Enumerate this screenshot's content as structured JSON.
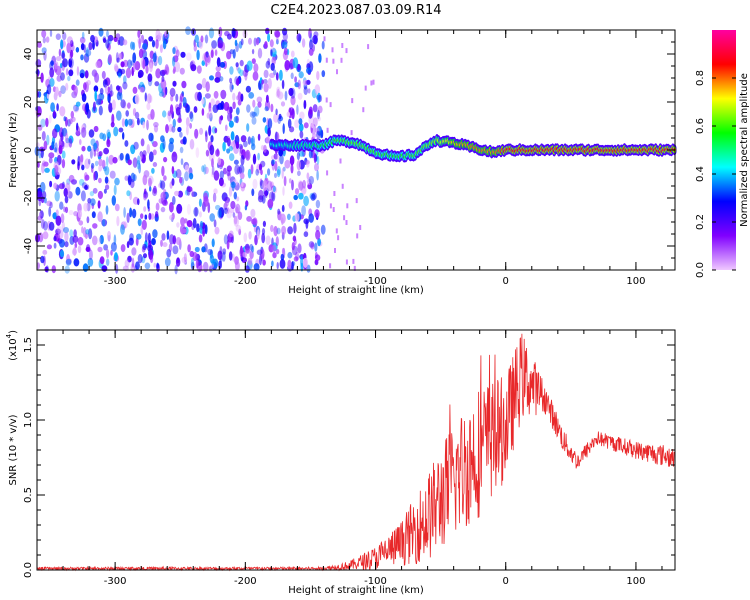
{
  "title": "C2E4.2023.087.03.09.R14",
  "chart_data": [
    {
      "type": "heatmap",
      "xlabel": "Height of straight line (km)",
      "ylabel": "Frequency (Hz)",
      "xlim": [
        -360,
        130
      ],
      "ylim": [
        -50,
        50
      ],
      "x_ticks": [
        -300,
        -200,
        -100,
        0,
        100
      ],
      "y_ticks": [
        -40,
        -20,
        0,
        20,
        40
      ],
      "colorbar": {
        "label": "Normalized spectral amplitude",
        "range": [
          0.0,
          1.0
        ],
        "ticks": [
          "0.0",
          "0.2",
          "0.4",
          "0.6",
          "0.8"
        ],
        "colormap": [
          "#f0c8ff",
          "#8000ff",
          "#0000ff",
          "#00ffff",
          "#00ff00",
          "#ffff00",
          "#ff0000",
          "#ff00a0"
        ]
      },
      "noise_region": {
        "x_from": -360,
        "x_to": -140,
        "level": 0.15
      },
      "signal_trace": [
        {
          "x": -180,
          "f": 2,
          "amp": 0.45
        },
        {
          "x": -140,
          "f": 2,
          "amp": 0.55
        },
        {
          "x": -130,
          "f": 4,
          "amp": 0.6
        },
        {
          "x": -115,
          "f": 3,
          "amp": 0.62
        },
        {
          "x": -100,
          "f": -1,
          "amp": 0.6
        },
        {
          "x": -85,
          "f": -3,
          "amp": 0.58
        },
        {
          "x": -70,
          "f": -2,
          "amp": 0.6
        },
        {
          "x": -55,
          "f": 4,
          "amp": 0.65
        },
        {
          "x": -40,
          "f": 3,
          "amp": 0.75
        },
        {
          "x": -25,
          "f": 1,
          "amp": 0.8
        },
        {
          "x": -10,
          "f": -1,
          "amp": 0.78
        },
        {
          "x": 0,
          "f": 0,
          "amp": 0.85
        },
        {
          "x": 50,
          "f": 0,
          "amp": 0.85
        },
        {
          "x": 130,
          "f": 0,
          "amp": 0.85
        }
      ]
    },
    {
      "type": "line",
      "xlabel": "Height of straight line (km)",
      "ylabel": "SNR (10 * v/v)",
      "y_multiplier": "(x10",
      "y_multiplier_exp": "4",
      "xlim": [
        -360,
        130
      ],
      "ylim": [
        0,
        1.6
      ],
      "x_ticks": [
        -300,
        -200,
        -100,
        0,
        100
      ],
      "y_ticks": [
        "0.0",
        "0.5",
        "1.0",
        "1.5"
      ],
      "series": [
        {
          "color": "#e8282a",
          "envelope": [
            {
              "x": -360,
              "mean": 0.01,
              "amp": 0.01
            },
            {
              "x": -140,
              "mean": 0.01,
              "amp": 0.01
            },
            {
              "x": -120,
              "mean": 0.03,
              "amp": 0.03
            },
            {
              "x": -100,
              "mean": 0.08,
              "amp": 0.08
            },
            {
              "x": -80,
              "mean": 0.18,
              "amp": 0.15
            },
            {
              "x": -60,
              "mean": 0.35,
              "amp": 0.3
            },
            {
              "x": -40,
              "mean": 0.6,
              "amp": 0.4
            },
            {
              "x": -20,
              "mean": 0.8,
              "amp": 0.45
            },
            {
              "x": 0,
              "mean": 0.95,
              "amp": 0.35
            },
            {
              "x": 12,
              "mean": 1.3,
              "amp": 0.3
            },
            {
              "x": 30,
              "mean": 1.15,
              "amp": 0.1
            },
            {
              "x": 45,
              "mean": 0.85,
              "amp": 0.08
            },
            {
              "x": 55,
              "mean": 0.72,
              "amp": 0.06
            },
            {
              "x": 70,
              "mean": 0.88,
              "amp": 0.05
            },
            {
              "x": 100,
              "mean": 0.8,
              "amp": 0.06
            },
            {
              "x": 130,
              "mean": 0.75,
              "amp": 0.08
            }
          ]
        }
      ]
    }
  ]
}
